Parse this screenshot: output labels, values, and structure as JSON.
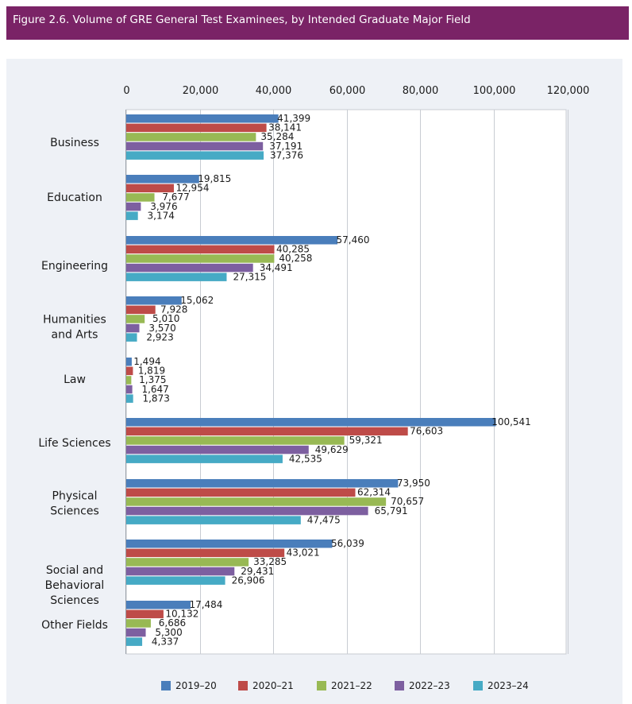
{
  "figure_title": "Figure 2.6. Volume of GRE General Test Examinees, by Intended Graduate Major Field",
  "chart_data": {
    "type": "bar",
    "orientation": "horizontal",
    "title": "Figure 2.6. Volume of GRE General Test Examinees, by Intended Graduate Major Field",
    "xlim": [
      0,
      120000
    ],
    "ticks": [
      "0",
      "20,000",
      "40,000",
      "60,000",
      "80,000",
      "100,000",
      "120,000"
    ],
    "tick_values": [
      0,
      20000,
      40000,
      60000,
      80000,
      100000,
      120000
    ],
    "grid": true,
    "legend_position": "bottom",
    "categories": [
      [
        "Business"
      ],
      [
        "Education"
      ],
      [
        "Engineering"
      ],
      [
        "Humanities",
        "and Arts"
      ],
      [
        "Law"
      ],
      [
        "Life Sciences"
      ],
      [
        "Physical",
        "Sciences"
      ],
      [
        "Social and",
        "Behavioral",
        "Sciences"
      ],
      [
        "Other Fields"
      ]
    ],
    "series": [
      {
        "name": "2019–20",
        "color": "#4a7ebb",
        "values": [
          41399,
          19815,
          57460,
          15062,
          1494,
          100541,
          73950,
          56039,
          17484
        ],
        "labels": [
          "41,399",
          "19,815",
          "57,460",
          "15,062",
          "1,494",
          "100,541",
          "73,950",
          "56,039",
          "17,484"
        ]
      },
      {
        "name": "2020–21",
        "color": "#be4b48",
        "values": [
          38141,
          12954,
          40285,
          7928,
          1819,
          76603,
          62314,
          43021,
          10132
        ],
        "labels": [
          "38,141",
          "12,954",
          "40,285",
          "7,928",
          "1,819",
          "76,603",
          "62,314",
          "43,021",
          "10,132"
        ]
      },
      {
        "name": "2021–22",
        "color": "#98b954",
        "values": [
          35284,
          7677,
          40258,
          5010,
          1375,
          59321,
          70657,
          33285,
          6686
        ],
        "labels": [
          "35,284",
          "7,677",
          "40,258",
          "5,010",
          "1,375",
          "59,321",
          "70,657",
          "33,285",
          "6,686"
        ]
      },
      {
        "name": "2022–23",
        "color": "#7d5fa0",
        "values": [
          37191,
          3976,
          34491,
          3570,
          1647,
          49629,
          65791,
          29431,
          5300
        ],
        "labels": [
          "37,191",
          "3,976",
          "34,491",
          "3,570",
          "1,647",
          "49,629",
          "65,791",
          "29,431",
          "5,300"
        ]
      },
      {
        "name": "2023–24",
        "color": "#46aac5",
        "values": [
          37376,
          3174,
          27315,
          2923,
          1873,
          42535,
          47475,
          26906,
          4337
        ],
        "labels": [
          "37,376",
          "3,174",
          "27,315",
          "2,923",
          "1,873",
          "42,535",
          "47,475",
          "26,906",
          "4,337"
        ]
      }
    ]
  }
}
